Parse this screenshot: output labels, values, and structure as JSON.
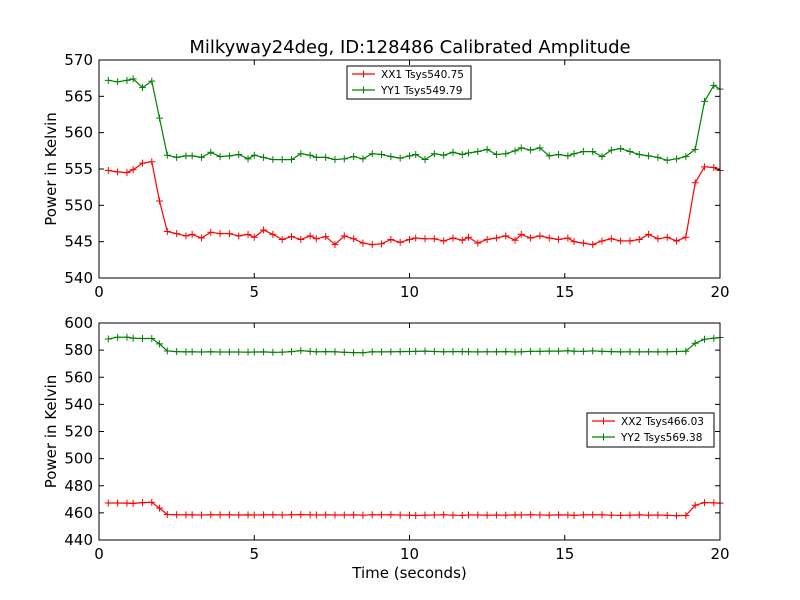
{
  "title": "Milkyway24deg, ID:128486 Calibrated Amplitude",
  "chart_data": [
    {
      "type": "line",
      "ylabel": "Power in Kelvin",
      "xlabel": "",
      "xlim": [
        0,
        20
      ],
      "ylim": [
        540,
        570
      ],
      "xticks": [
        0,
        5,
        10,
        15,
        20
      ],
      "yticks": [
        540,
        545,
        550,
        555,
        560,
        565,
        570
      ],
      "legend_position": "upper center",
      "grid": false,
      "x": [
        0.3,
        0.6,
        0.9,
        1.1,
        1.4,
        1.7,
        1.95,
        2.2,
        2.5,
        2.8,
        3.0,
        3.3,
        3.6,
        3.9,
        4.2,
        4.5,
        4.8,
        5.0,
        5.3,
        5.6,
        5.9,
        6.2,
        6.5,
        6.8,
        7.0,
        7.3,
        7.6,
        7.9,
        8.2,
        8.5,
        8.8,
        9.1,
        9.4,
        9.7,
        10.0,
        10.2,
        10.5,
        10.8,
        11.1,
        11.4,
        11.7,
        11.9,
        12.2,
        12.5,
        12.8,
        13.1,
        13.4,
        13.6,
        13.9,
        14.2,
        14.5,
        14.8,
        15.1,
        15.3,
        15.6,
        15.9,
        16.2,
        16.5,
        16.8,
        17.1,
        17.4,
        17.7,
        18.0,
        18.3,
        18.6,
        18.9,
        19.2,
        19.5,
        19.8,
        20.0
      ],
      "series": [
        {
          "name": "XX1 Tsys540.75",
          "color": "#ff0000",
          "values": [
            554.8,
            554.6,
            554.5,
            554.9,
            555.8,
            556.0,
            550.6,
            546.4,
            546.1,
            545.8,
            546.0,
            545.5,
            546.3,
            546.1,
            546.1,
            545.8,
            546.0,
            545.6,
            546.6,
            546.0,
            545.3,
            545.7,
            545.3,
            545.8,
            545.4,
            545.7,
            544.6,
            545.8,
            545.4,
            544.8,
            544.6,
            544.7,
            545.3,
            544.9,
            545.3,
            545.5,
            545.4,
            545.4,
            545.1,
            545.5,
            545.2,
            545.6,
            544.8,
            545.3,
            545.5,
            545.8,
            545.2,
            546.0,
            545.5,
            545.8,
            545.5,
            545.3,
            545.5,
            545.0,
            544.8,
            544.6,
            545.1,
            545.4,
            545.1,
            545.1,
            545.3,
            546.0,
            545.4,
            545.6,
            545.1,
            545.6,
            553.1,
            555.3,
            555.2,
            554.8
          ]
        },
        {
          "name": "YY1 Tsys549.79",
          "color": "#008000",
          "values": [
            567.2,
            567.0,
            567.2,
            567.4,
            566.2,
            567.1,
            562.0,
            556.9,
            556.6,
            556.8,
            556.8,
            556.6,
            557.3,
            556.7,
            556.8,
            557.0,
            556.4,
            556.9,
            556.6,
            556.3,
            556.3,
            556.3,
            557.1,
            556.9,
            556.6,
            556.6,
            556.3,
            556.4,
            556.7,
            556.4,
            557.1,
            557.0,
            556.7,
            556.5,
            556.8,
            557.0,
            556.3,
            557.1,
            556.9,
            557.3,
            557.0,
            557.2,
            557.4,
            557.7,
            557.0,
            557.1,
            557.5,
            557.9,
            557.6,
            557.9,
            556.8,
            557.0,
            556.8,
            557.1,
            557.4,
            557.4,
            556.7,
            557.6,
            557.8,
            557.4,
            557.0,
            556.8,
            556.6,
            556.2,
            556.4,
            556.7,
            557.7,
            564.3,
            566.5,
            566.0
          ]
        }
      ]
    },
    {
      "type": "line",
      "ylabel": "Power in Kelvin",
      "xlabel": "Time (seconds)",
      "xlim": [
        0,
        20
      ],
      "ylim": [
        440,
        600
      ],
      "xticks": [
        0,
        5,
        10,
        15,
        20
      ],
      "yticks": [
        440,
        460,
        480,
        500,
        520,
        540,
        560,
        580,
        600
      ],
      "legend_position": "center right",
      "grid": false,
      "x": [
        0.3,
        0.6,
        0.9,
        1.1,
        1.4,
        1.7,
        1.95,
        2.2,
        2.5,
        2.8,
        3.0,
        3.3,
        3.6,
        3.9,
        4.2,
        4.5,
        4.8,
        5.0,
        5.3,
        5.6,
        5.9,
        6.2,
        6.5,
        6.8,
        7.0,
        7.3,
        7.6,
        7.9,
        8.2,
        8.5,
        8.8,
        9.1,
        9.4,
        9.7,
        10.0,
        10.2,
        10.5,
        10.8,
        11.1,
        11.4,
        11.7,
        11.9,
        12.2,
        12.5,
        12.8,
        13.1,
        13.4,
        13.6,
        13.9,
        14.2,
        14.5,
        14.8,
        15.1,
        15.3,
        15.6,
        15.9,
        16.2,
        16.5,
        16.8,
        17.1,
        17.4,
        17.7,
        18.0,
        18.3,
        18.6,
        18.9,
        19.2,
        19.5,
        19.8,
        20.0
      ],
      "series": [
        {
          "name": "XX2 Tsys466.03",
          "color": "#ff0000",
          "values": [
            467.3,
            467.3,
            467.2,
            467.0,
            467.6,
            467.8,
            463.5,
            458.8,
            458.6,
            458.5,
            458.6,
            458.4,
            458.6,
            458.5,
            458.5,
            458.4,
            458.5,
            458.4,
            458.5,
            458.6,
            458.4,
            458.6,
            458.7,
            458.5,
            458.4,
            458.5,
            458.4,
            458.4,
            458.5,
            458.3,
            458.6,
            458.5,
            458.6,
            458.4,
            458.3,
            458.1,
            458.3,
            458.4,
            458.6,
            458.3,
            458.2,
            458.4,
            458.4,
            458.3,
            458.4,
            458.3,
            458.5,
            458.4,
            458.6,
            458.4,
            458.3,
            458.5,
            458.4,
            458.2,
            458.5,
            458.5,
            458.6,
            458.3,
            458.2,
            458.3,
            458.5,
            458.3,
            458.4,
            458.2,
            457.9,
            458.1,
            465.6,
            467.6,
            467.4,
            467.2
          ]
        },
        {
          "name": "YY2 Tsys569.38",
          "color": "#008000",
          "values": [
            588.2,
            589.5,
            589.5,
            588.8,
            588.6,
            588.6,
            584.6,
            579.4,
            578.9,
            578.7,
            578.8,
            578.6,
            578.8,
            578.6,
            578.6,
            578.6,
            578.5,
            578.6,
            578.7,
            578.4,
            578.5,
            578.9,
            579.6,
            579.1,
            578.8,
            578.9,
            578.8,
            578.4,
            578.2,
            578.1,
            578.8,
            578.7,
            578.8,
            578.9,
            579.0,
            579.1,
            579.3,
            579.0,
            578.8,
            578.9,
            578.9,
            578.8,
            578.7,
            578.8,
            578.8,
            578.9,
            578.6,
            578.8,
            579.1,
            579.1,
            579.3,
            579.3,
            579.5,
            579.2,
            579.1,
            579.4,
            579.1,
            578.9,
            578.7,
            578.8,
            578.7,
            578.8,
            578.7,
            578.8,
            579.0,
            579.2,
            585.1,
            588.0,
            588.8,
            589.3
          ]
        }
      ]
    }
  ]
}
